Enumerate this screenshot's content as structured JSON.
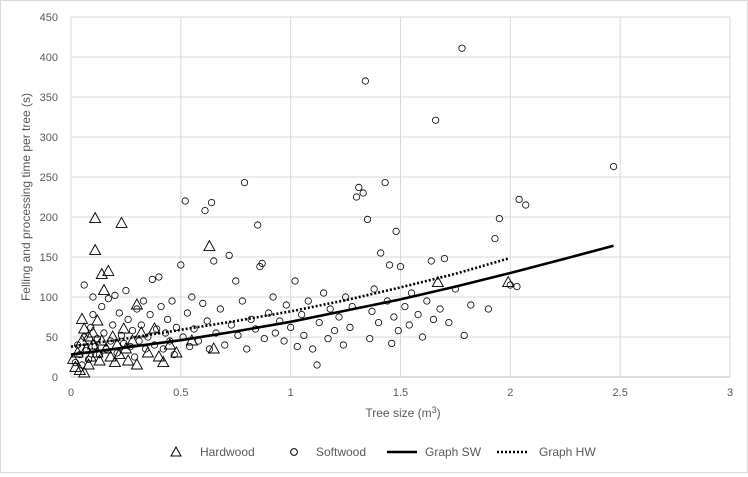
{
  "colors": {
    "grid": "#d9d9d9",
    "ink": "#595959",
    "series": "#000000",
    "background": "#ffffff"
  },
  "chart_data": {
    "type": "scatter",
    "title": "",
    "xlabel_main": "Tree size (m",
    "xlabel_sup": "3",
    "xlabel_end": ")",
    "ylabel": "Felling and processing time per tree (s)",
    "xlim": [
      0,
      3
    ],
    "ylim": [
      0,
      450
    ],
    "xticks": [
      0,
      0.5,
      1,
      1.5,
      2,
      2.5,
      3
    ],
    "xtick_labels": [
      "0",
      "0.5",
      "1",
      "1.5",
      "2",
      "2.5",
      "3"
    ],
    "yticks": [
      0,
      50,
      100,
      150,
      200,
      250,
      300,
      350,
      400,
      450
    ],
    "ytick_labels": [
      "0",
      "50",
      "100",
      "150",
      "200",
      "250",
      "300",
      "350",
      "400",
      "450"
    ],
    "grid": "major gridlines on both axes",
    "legend_position": "bottom",
    "legend": [
      {
        "label": "Hardwood",
        "marker": "triangle"
      },
      {
        "label": "Softwood",
        "marker": "circle"
      },
      {
        "label": "Graph SW",
        "marker": "solid-line"
      },
      {
        "label": "Graph HW",
        "marker": "dotted-line"
      }
    ],
    "series": [
      {
        "name": "Hardwood",
        "marker": "triangle",
        "points": [
          [
            0.01,
            22
          ],
          [
            0.02,
            12
          ],
          [
            0.03,
            30
          ],
          [
            0.04,
            8
          ],
          [
            0.05,
            45
          ],
          [
            0.05,
            72
          ],
          [
            0.06,
            5
          ],
          [
            0.06,
            60
          ],
          [
            0.07,
            35
          ],
          [
            0.08,
            15
          ],
          [
            0.08,
            50
          ],
          [
            0.09,
            25
          ],
          [
            0.1,
            40
          ],
          [
            0.1,
            55
          ],
          [
            0.11,
            198
          ],
          [
            0.11,
            158
          ],
          [
            0.12,
            70
          ],
          [
            0.12,
            30
          ],
          [
            0.13,
            20
          ],
          [
            0.14,
            45
          ],
          [
            0.14,
            128
          ],
          [
            0.15,
            108
          ],
          [
            0.16,
            35
          ],
          [
            0.17,
            132
          ],
          [
            0.18,
            25
          ],
          [
            0.19,
            50
          ],
          [
            0.2,
            18
          ],
          [
            0.21,
            40
          ],
          [
            0.22,
            28
          ],
          [
            0.23,
            192
          ],
          [
            0.24,
            60
          ],
          [
            0.25,
            35
          ],
          [
            0.26,
            20
          ],
          [
            0.28,
            45
          ],
          [
            0.3,
            90
          ],
          [
            0.3,
            15
          ],
          [
            0.32,
            55
          ],
          [
            0.35,
            30
          ],
          [
            0.38,
            60
          ],
          [
            0.4,
            25
          ],
          [
            0.42,
            18
          ],
          [
            0.45,
            40
          ],
          [
            0.48,
            30
          ],
          [
            0.55,
            45
          ],
          [
            0.63,
            163
          ],
          [
            0.65,
            35
          ],
          [
            1.67,
            118
          ],
          [
            1.99,
            118
          ]
        ]
      },
      {
        "name": "Softwood",
        "marker": "circle",
        "points": [
          [
            0.02,
            18
          ],
          [
            0.03,
            40
          ],
          [
            0.04,
            28
          ],
          [
            0.05,
            15
          ],
          [
            0.06,
            50
          ],
          [
            0.06,
            115
          ],
          [
            0.07,
            33
          ],
          [
            0.08,
            22
          ],
          [
            0.09,
            62
          ],
          [
            0.1,
            78
          ],
          [
            0.1,
            100
          ],
          [
            0.11,
            38
          ],
          [
            0.12,
            48
          ],
          [
            0.13,
            28
          ],
          [
            0.14,
            88
          ],
          [
            0.15,
            55
          ],
          [
            0.16,
            35
          ],
          [
            0.17,
            98
          ],
          [
            0.18,
            45
          ],
          [
            0.19,
            65
          ],
          [
            0.2,
            102
          ],
          [
            0.21,
            30
          ],
          [
            0.22,
            80
          ],
          [
            0.23,
            52
          ],
          [
            0.24,
            42
          ],
          [
            0.25,
            108
          ],
          [
            0.26,
            72
          ],
          [
            0.27,
            38
          ],
          [
            0.28,
            58
          ],
          [
            0.29,
            25
          ],
          [
            0.3,
            85
          ],
          [
            0.31,
            45
          ],
          [
            0.32,
            65
          ],
          [
            0.33,
            95
          ],
          [
            0.34,
            35
          ],
          [
            0.35,
            50
          ],
          [
            0.36,
            78
          ],
          [
            0.37,
            122
          ],
          [
            0.38,
            40
          ],
          [
            0.39,
            60
          ],
          [
            0.4,
            125
          ],
          [
            0.41,
            88
          ],
          [
            0.42,
            35
          ],
          [
            0.43,
            55
          ],
          [
            0.44,
            72
          ],
          [
            0.45,
            45
          ],
          [
            0.46,
            95
          ],
          [
            0.47,
            28
          ],
          [
            0.48,
            62
          ],
          [
            0.5,
            140
          ],
          [
            0.51,
            50
          ],
          [
            0.52,
            220
          ],
          [
            0.53,
            80
          ],
          [
            0.54,
            38
          ],
          [
            0.55,
            100
          ],
          [
            0.56,
            60
          ],
          [
            0.58,
            45
          ],
          [
            0.6,
            92
          ],
          [
            0.61,
            208
          ],
          [
            0.62,
            70
          ],
          [
            0.63,
            35
          ],
          [
            0.64,
            218
          ],
          [
            0.65,
            145
          ],
          [
            0.66,
            55
          ],
          [
            0.68,
            85
          ],
          [
            0.7,
            40
          ],
          [
            0.72,
            152
          ],
          [
            0.73,
            65
          ],
          [
            0.75,
            120
          ],
          [
            0.76,
            52
          ],
          [
            0.78,
            95
          ],
          [
            0.79,
            243
          ],
          [
            0.8,
            35
          ],
          [
            0.82,
            72
          ],
          [
            0.84,
            60
          ],
          [
            0.85,
            190
          ],
          [
            0.86,
            138
          ],
          [
            0.87,
            142
          ],
          [
            0.88,
            48
          ],
          [
            0.9,
            80
          ],
          [
            0.92,
            100
          ],
          [
            0.93,
            55
          ],
          [
            0.95,
            70
          ],
          [
            0.97,
            45
          ],
          [
            0.98,
            90
          ],
          [
            1.0,
            62
          ],
          [
            1.02,
            120
          ],
          [
            1.03,
            38
          ],
          [
            1.05,
            78
          ],
          [
            1.06,
            52
          ],
          [
            1.08,
            95
          ],
          [
            1.1,
            35
          ],
          [
            1.12,
            15
          ],
          [
            1.13,
            68
          ],
          [
            1.15,
            105
          ],
          [
            1.17,
            48
          ],
          [
            1.18,
            85
          ],
          [
            1.2,
            58
          ],
          [
            1.22,
            75
          ],
          [
            1.24,
            40
          ],
          [
            1.25,
            100
          ],
          [
            1.27,
            62
          ],
          [
            1.28,
            88
          ],
          [
            1.3,
            225
          ],
          [
            1.31,
            237
          ],
          [
            1.33,
            230
          ],
          [
            1.34,
            370
          ],
          [
            1.35,
            197
          ],
          [
            1.36,
            48
          ],
          [
            1.37,
            82
          ],
          [
            1.38,
            110
          ],
          [
            1.4,
            68
          ],
          [
            1.41,
            155
          ],
          [
            1.43,
            243
          ],
          [
            1.44,
            95
          ],
          [
            1.45,
            140
          ],
          [
            1.46,
            42
          ],
          [
            1.47,
            75
          ],
          [
            1.48,
            182
          ],
          [
            1.49,
            58
          ],
          [
            1.5,
            138
          ],
          [
            1.52,
            88
          ],
          [
            1.54,
            65
          ],
          [
            1.55,
            105
          ],
          [
            1.58,
            78
          ],
          [
            1.6,
            50
          ],
          [
            1.62,
            95
          ],
          [
            1.64,
            145
          ],
          [
            1.65,
            72
          ],
          [
            1.66,
            321
          ],
          [
            1.68,
            85
          ],
          [
            1.7,
            148
          ],
          [
            1.72,
            68
          ],
          [
            1.75,
            110
          ],
          [
            1.78,
            411
          ],
          [
            1.79,
            52
          ],
          [
            1.82,
            90
          ],
          [
            1.9,
            85
          ],
          [
            1.93,
            173
          ],
          [
            1.95,
            198
          ],
          [
            2.0,
            115
          ],
          [
            2.03,
            113
          ],
          [
            2.04,
            222
          ],
          [
            2.07,
            215
          ],
          [
            2.47,
            263
          ]
        ]
      }
    ],
    "trend_lines": [
      {
        "name": "Graph SW",
        "style": "solid",
        "x": [
          0.0,
          0.25,
          0.5,
          0.75,
          1.0,
          1.25,
          1.5,
          1.75,
          2.0,
          2.25,
          2.47
        ],
        "y": [
          28,
          37,
          46,
          57,
          69,
          83,
          97,
          113,
          130,
          148,
          164
        ]
      },
      {
        "name": "Graph HW",
        "style": "dotted",
        "x": [
          0.0,
          0.25,
          0.5,
          0.75,
          1.0,
          1.25,
          1.5,
          1.75,
          1.99
        ],
        "y": [
          38,
          48,
          59,
          70,
          82,
          96,
          112,
          129,
          148
        ]
      }
    ]
  }
}
